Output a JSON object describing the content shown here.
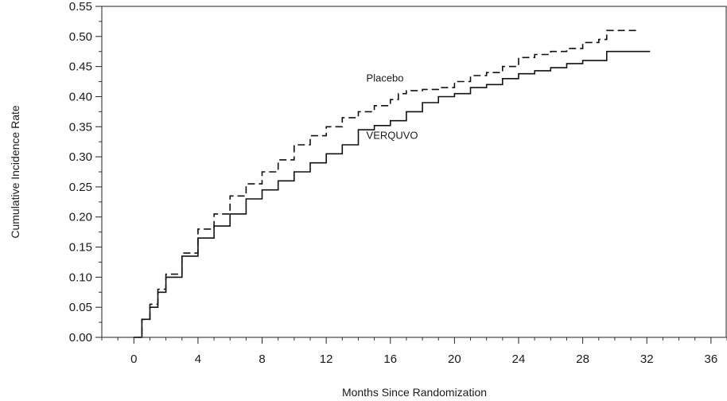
{
  "chart_data": {
    "type": "line",
    "title": "",
    "xlabel": "Months Since Randomization",
    "ylabel": "Cumulative Incidence Rate",
    "xlim": [
      -2,
      37
    ],
    "ylim": [
      0,
      0.55
    ],
    "x_ticks": [
      0,
      4,
      8,
      12,
      16,
      20,
      24,
      28,
      32,
      36
    ],
    "y_ticks": [
      0.0,
      0.05,
      0.1,
      0.15,
      0.2,
      0.25,
      0.3,
      0.35,
      0.4,
      0.45,
      0.5,
      0.55
    ],
    "x_minor_step": 1,
    "y_minor_step": 0.025,
    "grid": false,
    "series": [
      {
        "name": "Placebo",
        "style": "dashed",
        "points": [
          [
            0,
            0
          ],
          [
            0.5,
            0.03
          ],
          [
            1,
            0.055
          ],
          [
            1.5,
            0.08
          ],
          [
            2,
            0.105
          ],
          [
            3,
            0.14
          ],
          [
            4,
            0.18
          ],
          [
            5,
            0.205
          ],
          [
            6,
            0.235
          ],
          [
            7,
            0.255
          ],
          [
            8,
            0.275
          ],
          [
            9,
            0.295
          ],
          [
            10,
            0.32
          ],
          [
            11,
            0.335
          ],
          [
            12,
            0.35
          ],
          [
            13,
            0.365
          ],
          [
            14,
            0.375
          ],
          [
            15,
            0.385
          ],
          [
            16,
            0.395
          ],
          [
            16.5,
            0.405
          ],
          [
            17,
            0.41
          ],
          [
            18,
            0.412
          ],
          [
            19,
            0.415
          ],
          [
            20,
            0.425
          ],
          [
            21,
            0.435
          ],
          [
            22,
            0.44
          ],
          [
            23,
            0.45
          ],
          [
            24,
            0.465
          ],
          [
            25,
            0.47
          ],
          [
            26,
            0.475
          ],
          [
            27,
            0.48
          ],
          [
            28,
            0.49
          ],
          [
            29,
            0.495
          ],
          [
            29.5,
            0.51
          ],
          [
            31.5,
            0.51
          ]
        ]
      },
      {
        "name": "VERQUVO",
        "style": "solid",
        "points": [
          [
            0,
            0
          ],
          [
            0.5,
            0.03
          ],
          [
            1,
            0.05
          ],
          [
            1.5,
            0.075
          ],
          [
            2,
            0.1
          ],
          [
            3,
            0.135
          ],
          [
            4,
            0.165
          ],
          [
            5,
            0.185
          ],
          [
            6,
            0.205
          ],
          [
            7,
            0.23
          ],
          [
            8,
            0.245
          ],
          [
            9,
            0.26
          ],
          [
            10,
            0.275
          ],
          [
            11,
            0.29
          ],
          [
            12,
            0.305
          ],
          [
            13,
            0.32
          ],
          [
            14,
            0.345
          ],
          [
            15,
            0.352
          ],
          [
            16,
            0.36
          ],
          [
            17,
            0.375
          ],
          [
            18,
            0.39
          ],
          [
            19,
            0.4
          ],
          [
            20,
            0.405
          ],
          [
            21,
            0.415
          ],
          [
            22,
            0.42
          ],
          [
            23,
            0.43
          ],
          [
            24,
            0.438
          ],
          [
            25,
            0.443
          ],
          [
            26,
            0.448
          ],
          [
            27,
            0.455
          ],
          [
            28,
            0.46
          ],
          [
            29.5,
            0.475
          ],
          [
            32.2,
            0.475
          ]
        ]
      }
    ],
    "annotations": [
      {
        "text": "Placebo",
        "x": 14.5,
        "y": 0.425
      },
      {
        "text": "VERQUVO",
        "x": 14.5,
        "y": 0.33
      }
    ]
  }
}
